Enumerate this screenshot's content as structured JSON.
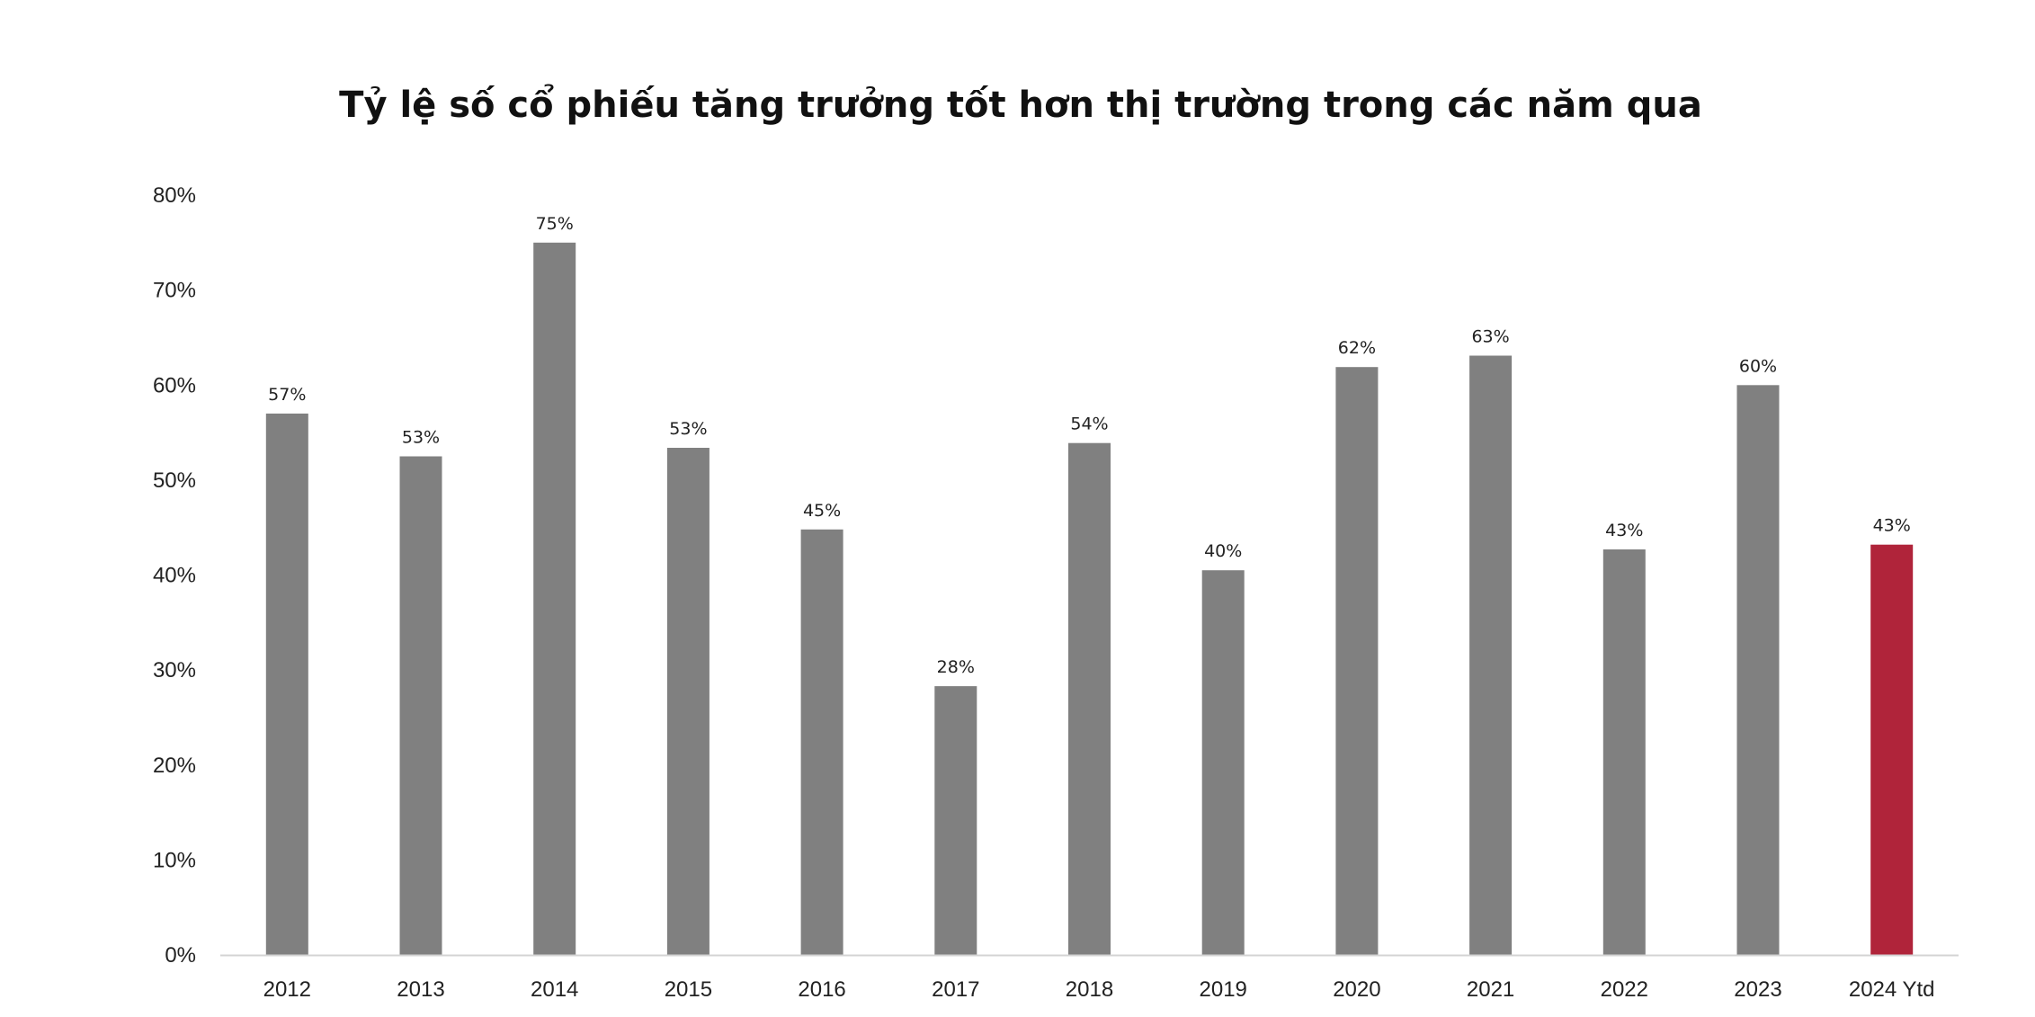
{
  "chart_data": {
    "type": "bar",
    "title": "Tỷ lệ số cổ phiếu tăng trưởng tốt hơn thị trường trong các năm qua",
    "xlabel": "",
    "ylabel": "",
    "ylim": [
      0,
      80
    ],
    "y_unit": "%",
    "y_ticks": [
      "0%",
      "10%",
      "20%",
      "30%",
      "40%",
      "50%",
      "60%",
      "70%",
      "80%"
    ],
    "grid": false,
    "legend": "none",
    "categories": [
      "2012",
      "2013",
      "2014",
      "2015",
      "2016",
      "2017",
      "2018",
      "2019",
      "2020",
      "2021",
      "2022",
      "2023",
      "2024 Ytd"
    ],
    "values": [
      57,
      52.5,
      75,
      53.4,
      44.8,
      28.3,
      53.9,
      40.5,
      61.9,
      63.1,
      42.7,
      60,
      43.2
    ],
    "data_labels": [
      "57%",
      "53%",
      "75%",
      "53%",
      "45%",
      "28%",
      "54%",
      "40%",
      "62%",
      "63%",
      "43%",
      "60%",
      "43%"
    ],
    "colors": {
      "bar": "#808080",
      "highlight": "#b0243a",
      "axis": "#d4d4d4"
    },
    "highlight_index": 12
  }
}
